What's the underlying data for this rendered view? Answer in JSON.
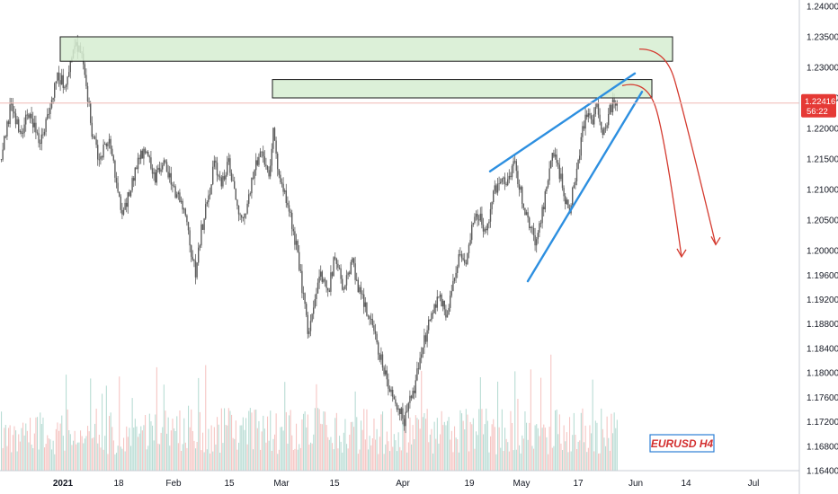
{
  "chart_data": {
    "type": "candlestick",
    "symbol_label": "EURUSD H4",
    "x_tick_labels": [
      "2021",
      "18",
      "Feb",
      "15",
      "Mar",
      "15",
      "Apr",
      "19",
      "May",
      "17",
      "Jun",
      "14",
      "Jul"
    ],
    "y_tick_labels": [
      "1.24000",
      "1.23500",
      "1.23000",
      "1.22500",
      "1.22000",
      "1.21500",
      "1.21000",
      "1.20500",
      "1.20000",
      "1.19600",
      "1.19200",
      "1.18800",
      "1.18400",
      "1.18000",
      "1.17600",
      "1.17200",
      "1.16800",
      "1.16400"
    ],
    "ylim": [
      1.164,
      1.24
    ],
    "current_price": {
      "value": 1.22416,
      "label": "1.22416",
      "countdown": "56:22"
    },
    "price_path": [
      [
        0,
        1.215
      ],
      [
        12,
        1.224
      ],
      [
        22,
        1.219
      ],
      [
        32,
        1.223
      ],
      [
        44,
        1.218
      ],
      [
        55,
        1.223
      ],
      [
        63,
        1.229
      ],
      [
        72,
        1.227
      ],
      [
        80,
        1.232
      ],
      [
        88,
        1.234
      ],
      [
        93,
        1.229
      ],
      [
        98,
        1.224
      ],
      [
        103,
        1.218
      ],
      [
        110,
        1.215
      ],
      [
        120,
        1.218
      ],
      [
        128,
        1.212
      ],
      [
        136,
        1.206
      ],
      [
        146,
        1.211
      ],
      [
        155,
        1.215
      ],
      [
        163,
        1.217
      ],
      [
        172,
        1.212
      ],
      [
        182,
        1.215
      ],
      [
        192,
        1.21
      ],
      [
        200,
        1.208
      ],
      [
        207,
        1.205
      ],
      [
        212,
        1.2
      ],
      [
        217,
        1.196
      ],
      [
        223,
        1.203
      ],
      [
        230,
        1.208
      ],
      [
        238,
        1.214
      ],
      [
        246,
        1.211
      ],
      [
        254,
        1.215
      ],
      [
        262,
        1.208
      ],
      [
        269,
        1.204
      ],
      [
        276,
        1.209
      ],
      [
        284,
        1.214
      ],
      [
        292,
        1.216
      ],
      [
        299,
        1.212
      ],
      [
        304,
        1.22
      ],
      [
        309,
        1.213
      ],
      [
        316,
        1.21
      ],
      [
        322,
        1.206
      ],
      [
        330,
        1.2
      ],
      [
        337,
        1.192
      ],
      [
        343,
        1.186
      ],
      [
        349,
        1.191
      ],
      [
        356,
        1.196
      ],
      [
        364,
        1.193
      ],
      [
        372,
        1.199
      ],
      [
        381,
        1.194
      ],
      [
        391,
        1.198
      ],
      [
        400,
        1.193
      ],
      [
        408,
        1.19
      ],
      [
        416,
        1.186
      ],
      [
        424,
        1.182
      ],
      [
        431,
        1.178
      ],
      [
        438,
        1.176
      ],
      [
        444,
        1.174
      ],
      [
        449,
        1.172
      ],
      [
        455,
        1.175
      ],
      [
        461,
        1.178
      ],
      [
        467,
        1.183
      ],
      [
        473,
        1.186
      ],
      [
        480,
        1.19
      ],
      [
        488,
        1.193
      ],
      [
        496,
        1.189
      ],
      [
        503,
        1.194
      ],
      [
        510,
        1.199
      ],
      [
        517,
        1.198
      ],
      [
        524,
        1.204
      ],
      [
        532,
        1.206
      ],
      [
        540,
        1.203
      ],
      [
        548,
        1.209
      ],
      [
        555,
        1.212
      ],
      [
        563,
        1.21
      ],
      [
        571,
        1.215
      ],
      [
        578,
        1.21
      ],
      [
        584,
        1.206
      ],
      [
        590,
        1.204
      ],
      [
        596,
        1.201
      ],
      [
        602,
        1.206
      ],
      [
        608,
        1.211
      ],
      [
        614,
        1.216
      ],
      [
        620,
        1.214
      ],
      [
        627,
        1.209
      ],
      [
        633,
        1.207
      ],
      [
        639,
        1.212
      ],
      [
        645,
        1.217
      ],
      [
        651,
        1.223
      ],
      [
        657,
        1.221
      ],
      [
        664,
        1.224
      ],
      [
        670,
        1.219
      ],
      [
        676,
        1.222
      ],
      [
        682,
        1.225
      ],
      [
        686,
        1.224
      ]
    ],
    "zones": [
      {
        "name": "upper-resistance-zone",
        "x_start_index": 67,
        "x_end_index": 748,
        "y_top": 1.235,
        "y_bottom": 1.231
      },
      {
        "name": "lower-resistance-zone",
        "x_start_index": 303,
        "x_end_index": 725,
        "y_top": 1.228,
        "y_bottom": 1.225
      }
    ],
    "trendlines": [
      {
        "name": "wedge-upper-line",
        "from": [
          545,
          1.213
        ],
        "to": [
          706,
          1.229
        ]
      },
      {
        "name": "wedge-lower-line",
        "from": [
          587,
          1.195
        ],
        "to": [
          714,
          1.226
        ]
      }
    ],
    "projection_arrows": [
      {
        "name": "projection-arrow-1",
        "from": [
          711,
          1.233
        ],
        "via": [
          740,
          1.231
        ],
        "to": [
          796,
          1.201
        ]
      },
      {
        "name": "projection-arrow-2",
        "from": [
          692,
          1.227
        ],
        "via": [
          720,
          1.226
        ],
        "to": [
          758,
          1.199
        ]
      }
    ],
    "colors": {
      "candle": "#5d5d5d",
      "volume_up": "#b8dcd4",
      "volume_down": "#f6c5c3",
      "zone_fill": "#d6edd1",
      "zone_stroke": "#1a1a1a",
      "trendline": "#2d8fe0",
      "arrow": "#d43a2f",
      "price_label_bg": "#e53935",
      "price_line": "#f0b9b4",
      "label_text": "#d32f2f",
      "label_border": "#2d7fd6",
      "axis_text": "#131722",
      "axis_border": "#c9cdd4"
    }
  }
}
